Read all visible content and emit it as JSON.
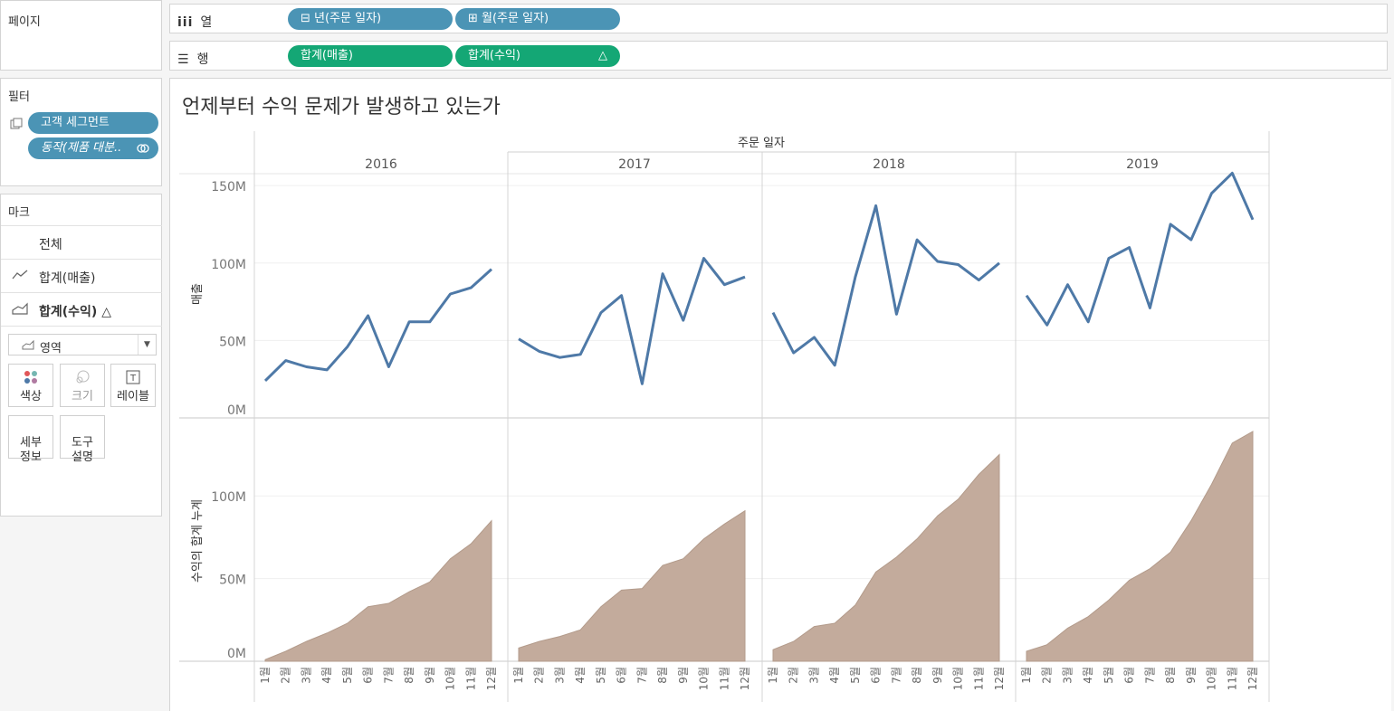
{
  "pages_panel": {
    "title": "페이지"
  },
  "filters_panel": {
    "title": "필터",
    "items": [
      {
        "label": "고객 세그먼트"
      },
      {
        "label": "동작(제품 대분.."
      }
    ]
  },
  "marks_panel": {
    "title": "마크",
    "rows": [
      {
        "label": "전체"
      },
      {
        "label": "합계(매출)"
      },
      {
        "label": "합계(수익) △"
      }
    ],
    "mark_type": "영역",
    "cards": [
      {
        "label": "색상"
      },
      {
        "label": "크기"
      },
      {
        "label": "레이블"
      },
      {
        "label": "세부\n정보"
      },
      {
        "label": "도구\n설명"
      }
    ]
  },
  "columns_shelf": {
    "label": "열",
    "pills": [
      {
        "label": "⊟ 년(주문 일자)"
      },
      {
        "label": "⊞ 월(주문 일자)"
      }
    ]
  },
  "rows_shelf": {
    "label": "행",
    "pills": [
      {
        "label": "합계(매출)",
        "delta": "△"
      },
      {
        "label": "합계(수익)",
        "delta": "△"
      }
    ]
  },
  "colors": {
    "line": "#4e79a7",
    "area": "#c3ab9c",
    "pill_blue": "#4b94b5",
    "pill_green": "#14a775"
  },
  "view": {
    "title": "언제부터 수익 문제가 발생하고 있는가"
  },
  "chart_data": {
    "type": "line",
    "column_header": "주문 일자",
    "panels": [
      "2016",
      "2017",
      "2018",
      "2019"
    ],
    "x_tick_labels": [
      "1월",
      "2월",
      "3월",
      "4월",
      "5월",
      "6월",
      "7월",
      "8월",
      "9월",
      "10월",
      "11월",
      "12월"
    ],
    "top": {
      "type": "line",
      "ylabel": "매출",
      "ylim": [
        0,
        160
      ],
      "y_ticks": [
        {
          "value": 0,
          "label": "0M"
        },
        {
          "value": 50,
          "label": "50M"
        },
        {
          "value": 100,
          "label": "100M"
        },
        {
          "value": 150,
          "label": "150M"
        }
      ],
      "series": [
        {
          "values": [
            24,
            37,
            33,
            31,
            46,
            66,
            33,
            62,
            62,
            80,
            84,
            96
          ]
        },
        {
          "values": [
            51,
            43,
            39,
            41,
            68,
            79,
            22,
            93,
            63,
            103,
            86,
            91
          ]
        },
        {
          "values": [
            68,
            42,
            52,
            34,
            91,
            137,
            67,
            115,
            101,
            99,
            89,
            100
          ]
        },
        {
          "values": [
            79,
            60,
            86,
            62,
            103,
            110,
            71,
            125,
            115,
            145,
            158,
            128
          ]
        }
      ]
    },
    "bottom": {
      "type": "area",
      "ylabel": "수익의 합계 누계",
      "ylim": [
        0,
        145
      ],
      "y_ticks": [
        {
          "value": 0,
          "label": "0M"
        },
        {
          "value": 50,
          "label": "50M"
        },
        {
          "value": 100,
          "label": "100M"
        }
      ],
      "series": [
        {
          "values": [
            1,
            6,
            12,
            17,
            23,
            33,
            35,
            42,
            48,
            62,
            71,
            85
          ]
        },
        {
          "values": [
            8,
            12,
            15,
            19,
            33,
            43,
            44,
            58,
            62,
            74,
            83,
            91
          ]
        },
        {
          "values": [
            7,
            12,
            21,
            23,
            34,
            54,
            63,
            74,
            88,
            98,
            113,
            125
          ]
        },
        {
          "values": [
            6,
            10,
            20,
            27,
            37,
            49,
            56,
            66,
            85,
            107,
            132,
            139
          ]
        }
      ]
    }
  }
}
